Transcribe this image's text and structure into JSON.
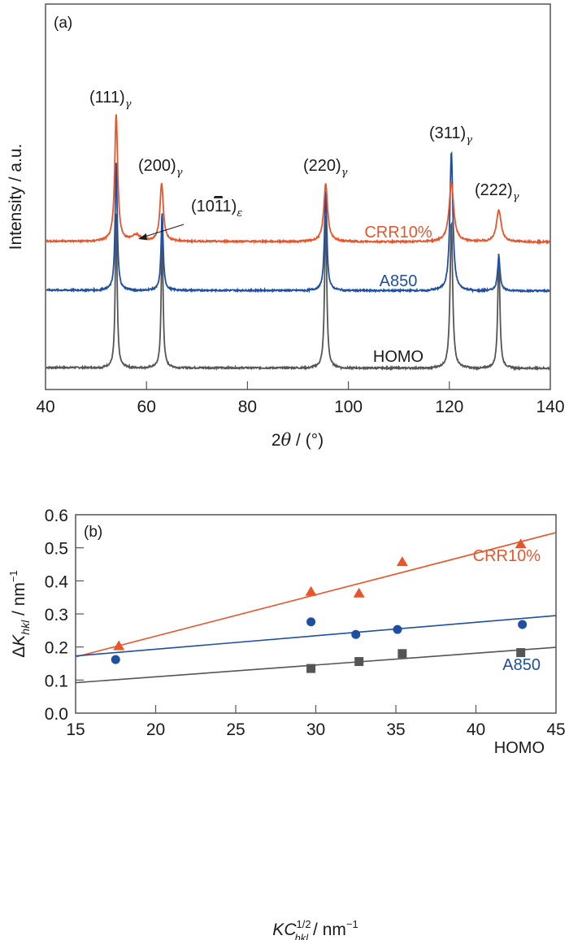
{
  "colors": {
    "CRR10%": "#e8552b",
    "A850": "#1f4fa0",
    "HOMO": "#555555",
    "axis": "#555555"
  },
  "chart_data": [
    {
      "type": "line",
      "panel_label": "(a)",
      "title": "",
      "xlabel": "2θ / (°)",
      "xlabel_parts": {
        "num": "2",
        "theta": "θ",
        "rest": " / (°)"
      },
      "ylabel": "Intensity / a.u.",
      "xlim": [
        40,
        140
      ],
      "xticks": [
        40,
        60,
        80,
        100,
        120,
        140
      ],
      "ylim": [
        0,
        1
      ],
      "grid": false,
      "legend": "inline labels",
      "series": [
        {
          "name": "CRR10%",
          "offset": 0.385,
          "peaks": [
            {
              "x": 54.0,
              "h": 0.33,
              "w": 0.35
            },
            {
              "x": 58.0,
              "h": 0.016,
              "w": 1.0
            },
            {
              "x": 63.0,
              "h": 0.15,
              "w": 0.4
            },
            {
              "x": 95.5,
              "h": 0.15,
              "w": 0.45
            },
            {
              "x": 120.4,
              "h": 0.152,
              "w": 0.55
            },
            {
              "x": 129.8,
              "h": 0.082,
              "w": 0.55
            }
          ]
        },
        {
          "name": "A850",
          "offset": 0.258,
          "peaks": [
            {
              "x": 54.0,
              "h": 0.33,
              "w": 0.25
            },
            {
              "x": 63.1,
              "h": 0.2,
              "w": 0.25
            },
            {
              "x": 95.5,
              "h": 0.26,
              "w": 0.28
            },
            {
              "x": 120.4,
              "h": 0.36,
              "w": 0.35
            },
            {
              "x": 129.8,
              "h": 0.088,
              "w": 0.3
            }
          ]
        },
        {
          "name": "HOMO",
          "offset": 0.057,
          "peaks": [
            {
              "x": 54.0,
              "h": 0.4,
              "w": 0.22
            },
            {
              "x": 63.1,
              "h": 0.35,
              "w": 0.22
            },
            {
              "x": 95.5,
              "h": 0.4,
              "w": 0.25
            },
            {
              "x": 120.4,
              "h": 0.38,
              "w": 0.3
            },
            {
              "x": 129.8,
              "h": 0.3,
              "w": 0.25
            }
          ]
        }
      ],
      "annotations": [
        {
          "text": "(111)",
          "sub": "γ",
          "x": 54.0
        },
        {
          "text": "(200)",
          "sub": "γ",
          "x": 63.0
        },
        {
          "text": "(10",
          "bar": "1",
          "text2": "1)",
          "sub": "ε",
          "x": 58.0,
          "arrow": true
        },
        {
          "text": "(220)",
          "sub": "γ",
          "x": 95.5
        },
        {
          "text": "(311)",
          "sub": "γ",
          "x": 120.4
        },
        {
          "text": "(222)",
          "sub": "γ",
          "x": 129.8
        }
      ],
      "inline_labels": [
        "CRR10%",
        "A850",
        "HOMO"
      ]
    },
    {
      "type": "scatter",
      "panel_label": "(b)",
      "title": "",
      "xlabel": "KC̄1/2hkl / nm−1",
      "xlabel_parts": {
        "K": "K",
        "C": "C",
        "sup": "1/2",
        "sub": "hkl",
        "unit": " / nm",
        "unit_sup": "−1"
      },
      "ylabel": "ΔKhkl / nm−1",
      "ylabel_parts": {
        "delta": "Δ",
        "K": "K",
        "sub": "hkl",
        "unit": " / nm",
        "unit_sup": "−1"
      },
      "xlim": [
        15,
        45
      ],
      "ylim": [
        0.0,
        0.6
      ],
      "xticks": [
        15,
        20,
        25,
        30,
        35,
        40,
        45
      ],
      "yticks": [
        "0.0",
        "0.1",
        "0.2",
        "0.3",
        "0.4",
        "0.5",
        "0.6"
      ],
      "grid": false,
      "legend": "inline labels",
      "series": [
        {
          "name": "CRR10%",
          "marker": "triangle",
          "x": [
            17.7,
            29.7,
            32.7,
            35.4,
            42.8
          ],
          "y": [
            0.203,
            0.367,
            0.362,
            0.457,
            0.511
          ],
          "fit": {
            "x": [
              15,
              45
            ],
            "y": [
              0.17,
              0.546
            ]
          }
        },
        {
          "name": "A850",
          "marker": "circle",
          "x": [
            17.5,
            29.7,
            32.5,
            35.1,
            42.9
          ],
          "y": [
            0.162,
            0.276,
            0.238,
            0.253,
            0.268
          ],
          "fit": {
            "x": [
              15,
              45
            ],
            "y": [
              0.173,
              0.295
            ]
          }
        },
        {
          "name": "HOMO",
          "marker": "square",
          "x": [
            29.7,
            32.7,
            35.4,
            42.8
          ],
          "y": [
            0.135,
            0.156,
            0.18,
            0.183
          ],
          "fit": {
            "x": [
              15,
              45
            ],
            "y": [
              0.092,
              0.199
            ]
          }
        }
      ],
      "inline_labels": [
        "CRR10%",
        "A850",
        "HOMO"
      ]
    }
  ]
}
